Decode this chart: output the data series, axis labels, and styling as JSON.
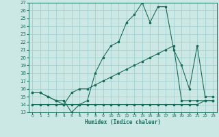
{
  "xlabel": "Humidex (Indice chaleur)",
  "background_color": "#cce8e4",
  "grid_color": "#99cccc",
  "line_color": "#1a6b5a",
  "xmin": -0.5,
  "xmax": 23.5,
  "ymin": 13,
  "ymax": 27,
  "x_ticks": [
    0,
    1,
    2,
    3,
    4,
    5,
    6,
    7,
    8,
    9,
    10,
    11,
    12,
    13,
    14,
    15,
    16,
    17,
    18,
    19,
    20,
    21,
    22,
    23
  ],
  "y_ticks": [
    13,
    14,
    15,
    16,
    17,
    18,
    19,
    20,
    21,
    22,
    23,
    24,
    25,
    26,
    27
  ],
  "curve1_x": [
    0,
    1,
    2,
    3,
    4,
    5,
    6,
    7,
    8,
    9,
    10,
    11,
    12,
    13,
    14,
    15,
    16,
    17,
    18,
    19,
    20,
    21,
    22,
    23
  ],
  "curve1_y": [
    15.5,
    15.5,
    15.0,
    14.5,
    14.5,
    13.0,
    14.0,
    14.5,
    18.0,
    20.0,
    21.5,
    22.0,
    24.5,
    25.5,
    27.0,
    24.5,
    26.5,
    26.5,
    21.0,
    19.0,
    16.0,
    21.5,
    15.0,
    15.0
  ],
  "curve2_x": [
    0,
    1,
    2,
    3,
    4,
    5,
    6,
    7,
    8,
    9,
    10,
    11,
    12,
    13,
    14,
    15,
    16,
    17,
    18,
    19,
    20,
    21,
    22,
    23
  ],
  "curve2_y": [
    15.5,
    15.5,
    15.0,
    14.5,
    14.0,
    15.5,
    16.0,
    16.0,
    16.5,
    17.0,
    17.5,
    18.0,
    18.5,
    19.0,
    19.5,
    20.0,
    20.5,
    21.0,
    21.5,
    14.5,
    14.5,
    14.5,
    14.5,
    14.5
  ],
  "curve3_x": [
    0,
    1,
    2,
    3,
    4,
    5,
    6,
    7,
    8,
    9,
    10,
    11,
    12,
    13,
    14,
    15,
    16,
    17,
    18,
    19,
    20,
    21,
    22,
    23
  ],
  "curve3_y": [
    14.0,
    14.0,
    14.0,
    14.0,
    14.0,
    14.0,
    14.0,
    14.0,
    14.0,
    14.0,
    14.0,
    14.0,
    14.0,
    14.0,
    14.0,
    14.0,
    14.0,
    14.0,
    14.0,
    14.0,
    14.0,
    14.0,
    14.5,
    14.5
  ]
}
